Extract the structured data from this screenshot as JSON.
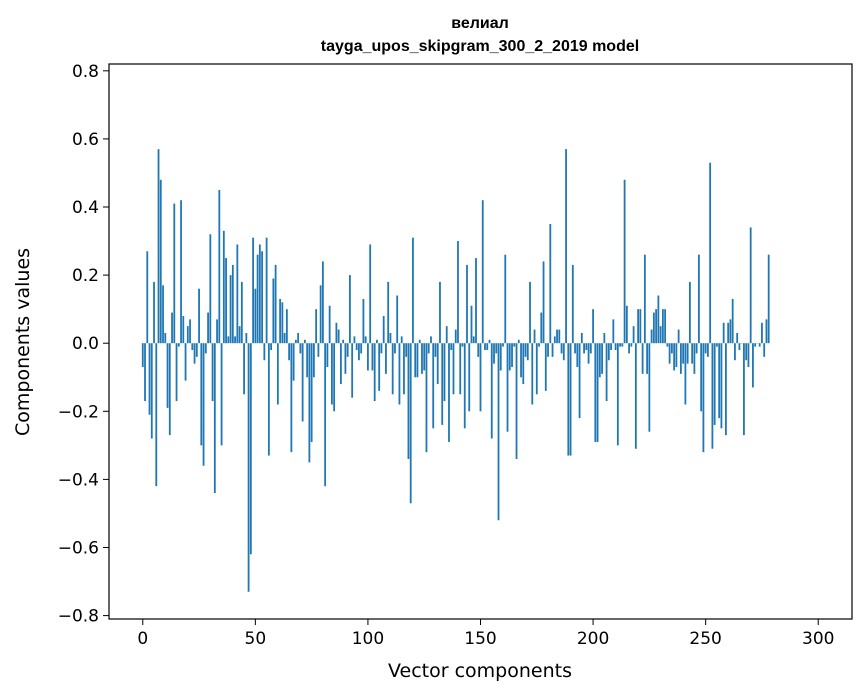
{
  "chart_data": {
    "type": "bar",
    "title": "велиал",
    "subtitle": "tayga_upos_skipgram_300_2_2019 model",
    "xlabel": "Vector components",
    "ylabel": "Components values",
    "xlim": [
      -15,
      315
    ],
    "ylim": [
      -0.81,
      0.82
    ],
    "xticks": [
      0,
      50,
      100,
      150,
      200,
      250,
      300
    ],
    "yticks": [
      -0.8,
      -0.6,
      -0.4,
      -0.2,
      0.0,
      0.2,
      0.4,
      0.6,
      0.8
    ],
    "xtick_labels": [
      "0",
      "50",
      "100",
      "150",
      "200",
      "250",
      "300"
    ],
    "ytick_labels": [
      "−0.8",
      "−0.6",
      "−0.4",
      "−0.2",
      "0.0",
      "0.2",
      "0.4",
      "0.6",
      "0.8"
    ],
    "grid": false,
    "legend": "none",
    "bar_color": "#1f77b4",
    "values": [
      -0.07,
      -0.17,
      0.27,
      -0.21,
      -0.28,
      0.18,
      -0.42,
      0.57,
      0.48,
      0.17,
      0.03,
      -0.19,
      -0.27,
      0.09,
      0.41,
      -0.17,
      -0.01,
      0.42,
      0.08,
      -0.11,
      0.05,
      0.07,
      -0.02,
      -0.06,
      -0.04,
      0.16,
      -0.3,
      -0.36,
      -0.03,
      0.09,
      0.32,
      -0.17,
      -0.44,
      0.07,
      0.45,
      -0.3,
      0.33,
      0.25,
      0.02,
      0.2,
      0.23,
      0.02,
      0.29,
      0.05,
      0.18,
      -0.15,
      0.03,
      -0.73,
      -0.62,
      0.31,
      0.16,
      0.26,
      0.29,
      0.27,
      -0.05,
      0.31,
      -0.33,
      -0.02,
      0.19,
      0.23,
      -0.18,
      0.13,
      0.12,
      0.03,
      0.1,
      -0.05,
      -0.32,
      -0.11,
      0.01,
      0.03,
      -0.03,
      -0.23,
      0.01,
      -0.1,
      -0.35,
      -0.29,
      -0.1,
      0.1,
      -0.04,
      0.17,
      0.24,
      -0.42,
      -0.07,
      0.11,
      -0.18,
      -0.2,
      0.06,
      0.04,
      -0.12,
      0.01,
      -0.09,
      -0.04,
      0.2,
      -0.16,
      0.02,
      -0.02,
      -0.05,
      -0.03,
      0.13,
      0.02,
      -0.08,
      0.29,
      -0.08,
      -0.17,
      0.01,
      -0.14,
      -0.03,
      0.08,
      -0.09,
      0.18,
      0.03,
      -0.15,
      -0.03,
      0.14,
      -0.18,
      0.02,
      -0.15,
      -0.04,
      -0.34,
      -0.47,
      0.31,
      -0.1,
      -0.1,
      0.01,
      -0.09,
      -0.08,
      -0.32,
      -0.03,
      0.02,
      -0.25,
      -0.04,
      -0.12,
      0.18,
      -0.24,
      -0.17,
      0.05,
      -0.29,
      -0.02,
      -0.15,
      0.04,
      0.3,
      -0.15,
      -0.01,
      -0.25,
      0.23,
      -0.2,
      0.11,
      0.02,
      0.25,
      -0.04,
      -0.2,
      0.42,
      -0.02,
      -0.02,
      0.01,
      -0.28,
      -0.06,
      -0.03,
      -0.52,
      -0.08,
      -0.01,
      0.26,
      -0.26,
      -0.08,
      -0.07,
      -0.01,
      -0.34,
      0.01,
      -0.1,
      -0.12,
      -0.04,
      -0.05,
      0.18,
      -0.18,
      0.04,
      -0.15,
      -0.01,
      0.09,
      0.24,
      -0.14,
      -0.04,
      0.35,
      -0.04,
      0.02,
      0.04,
      0.04,
      -0.03,
      -0.05,
      0.57,
      -0.33,
      -0.33,
      0.23,
      -0.03,
      -0.07,
      -0.22,
      0.03,
      -0.03,
      -0.02,
      -0.06,
      -0.03,
      0.1,
      -0.29,
      -0.29,
      -0.1,
      -0.09,
      0.03,
      -0.17,
      -0.05,
      -0.02,
      0.07,
      -0.02,
      -0.3,
      -0.01,
      -0.01,
      0.48,
      0.11,
      -0.03,
      -0.01,
      0.05,
      -0.31,
      0.1,
      0.1,
      -0.09,
      0.26,
      -0.09,
      -0.26,
      0.04,
      0.09,
      0.1,
      0.14,
      0.05,
      0.1,
      0.1,
      -0.01,
      -0.06,
      -0.03,
      -0.08,
      -0.07,
      0.04,
      -0.09,
      -0.06,
      -0.18,
      -0.06,
      0.18,
      -0.06,
      -0.09,
      -0.03,
      0.26,
      -0.2,
      -0.32,
      -0.03,
      -0.04,
      0.53,
      -0.31,
      -0.24,
      -0.01,
      -0.22,
      -0.25,
      0.06,
      -0.27,
      0.06,
      0.07,
      0.13,
      -0.05,
      0.03,
      -0.02,
      0.0,
      -0.27,
      -0.05,
      -0.07,
      0.34,
      -0.13,
      -0.01,
      0.0,
      -0.01,
      0.06,
      -0.04,
      0.07,
      0.26
    ],
    "bar_width": 0.8
  }
}
